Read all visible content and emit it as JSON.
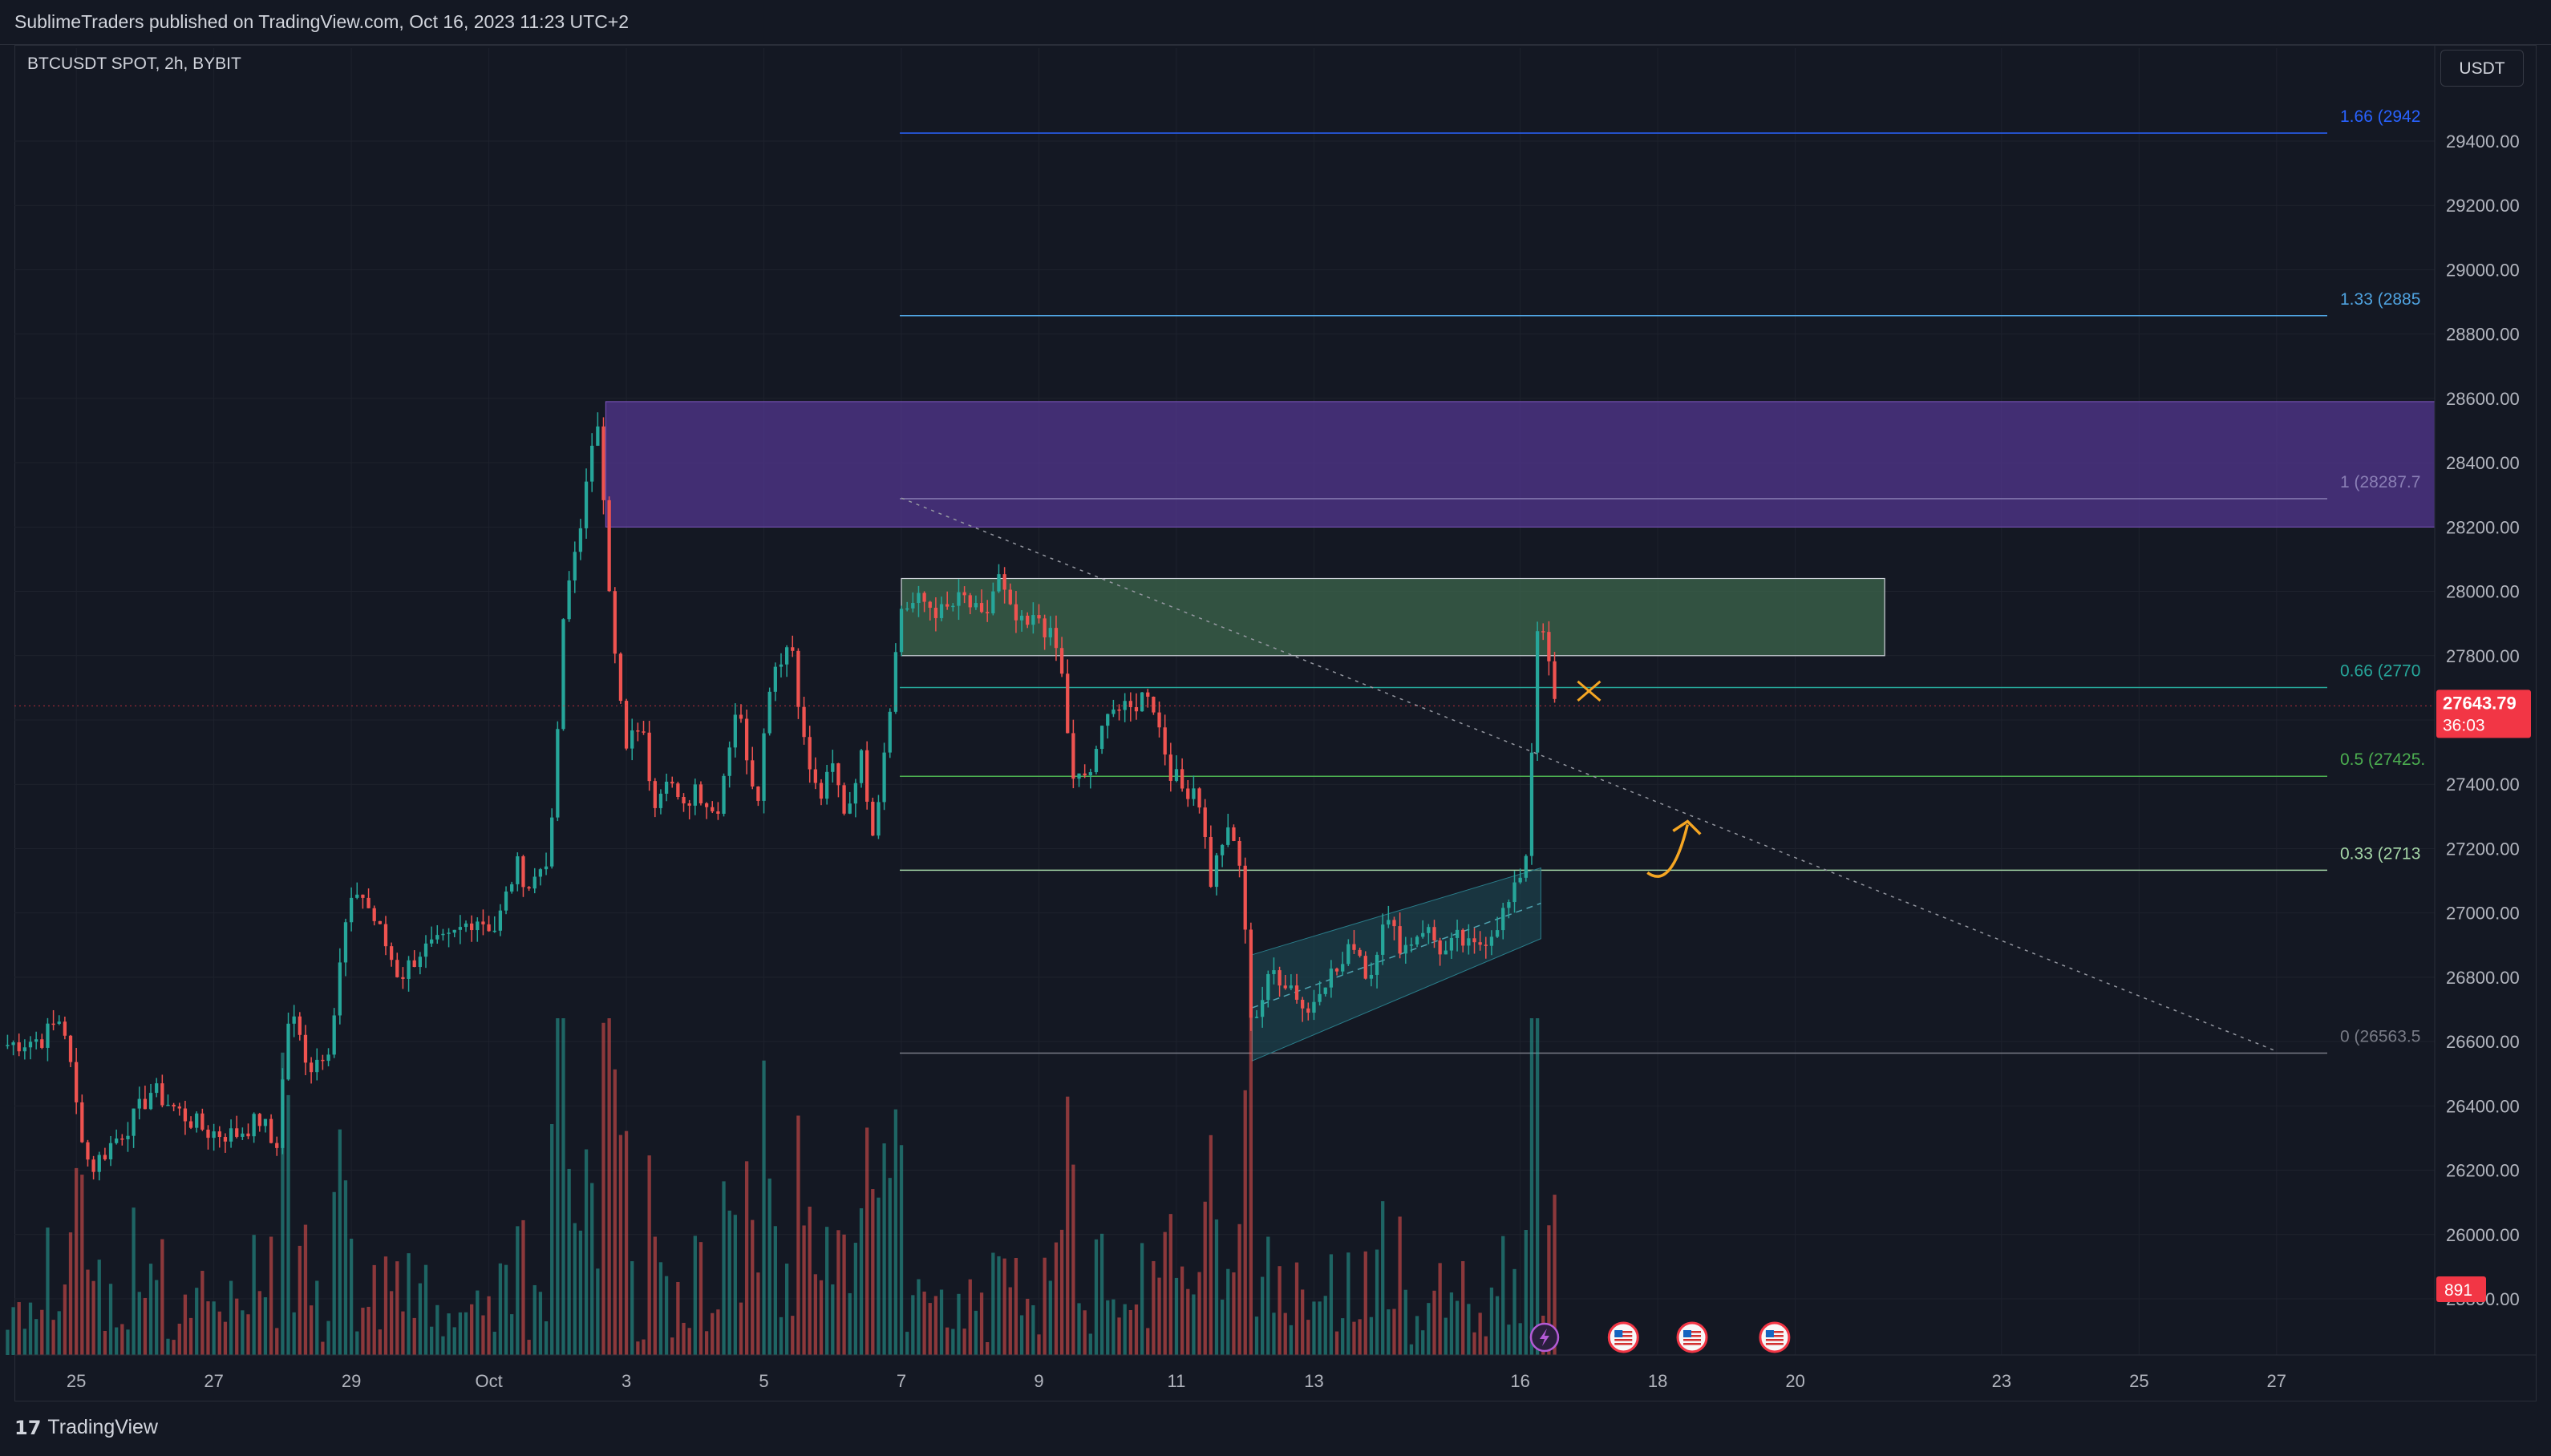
{
  "header": {
    "publisher": "SublimeTraders published on TradingView.com, Oct 16, 2023 11:23 UTC+2"
  },
  "chart_header": {
    "symbol": "BTCUSDT SPOT, 2h, BYBIT",
    "currency": "USDT"
  },
  "footer": {
    "logo_mark": "17",
    "logo_text": "TradingView"
  },
  "colors": {
    "background": "#141823",
    "grid": "#1e222d",
    "up": "#26a69a",
    "down": "#ef5350",
    "zone_purple": "#5b3a9e",
    "zone_green": "#3f6b4f",
    "fib_1_66": "#2962ff",
    "fib_1_33": "#4fa3e0",
    "fib_1": "#8a7fb5",
    "fib_0_66": "#26a69a",
    "fib_0_5": "#4caf50",
    "fib_0_33": "#a5d6a7",
    "fib_0": "#787b86",
    "annotation": "#f5a623",
    "price_badge": "#f23645"
  },
  "chart_data": {
    "type": "candlestick",
    "symbol": "BTCUSDT SPOT",
    "interval": "2h",
    "exchange": "BYBIT",
    "y_range": [
      25800,
      29600
    ],
    "y_ticks": [
      "29400.00",
      "29200.00",
      "29000.00",
      "28800.00",
      "28600.00",
      "28400.00",
      "28200.00",
      "28000.00",
      "27800.00",
      "27600.00",
      "27400.00",
      "27200.00",
      "27000.00",
      "26800.00",
      "26600.00",
      "26400.00",
      "26200.00",
      "26000.00",
      "25800.00"
    ],
    "y_tick_values": [
      29400,
      29200,
      29000,
      28800,
      28600,
      28400,
      28200,
      28000,
      27800,
      27600,
      27400,
      27200,
      27000,
      26800,
      26600,
      26400,
      26200,
      26000,
      25800
    ],
    "x_ticks": [
      {
        "label": "25",
        "day": 25
      },
      {
        "label": "27",
        "day": 27
      },
      {
        "label": "29",
        "day": 29
      },
      {
        "label": "Oct",
        "day": 31
      },
      {
        "label": "3",
        "day": 33
      },
      {
        "label": "5",
        "day": 35
      },
      {
        "label": "7",
        "day": 37
      },
      {
        "label": "9",
        "day": 39
      },
      {
        "label": "11",
        "day": 41
      },
      {
        "label": "13",
        "day": 43
      },
      {
        "label": "16",
        "day": 46
      },
      {
        "label": "18",
        "day": 48
      },
      {
        "label": "20",
        "day": 50
      },
      {
        "label": "23",
        "day": 53
      },
      {
        "label": "25",
        "day": 55
      },
      {
        "label": "27",
        "day": 57
      }
    ],
    "x_range_days": [
      24.1,
      59.3
    ],
    "price_path": [
      [
        24.0,
        26590
      ],
      [
        24.5,
        26610
      ],
      [
        24.8,
        26680
      ],
      [
        25.0,
        26400
      ],
      [
        25.2,
        26200
      ],
      [
        25.5,
        26280
      ],
      [
        25.8,
        26350
      ],
      [
        26.1,
        26450
      ],
      [
        26.5,
        26380
      ],
      [
        26.9,
        26320
      ],
      [
        27.3,
        26310
      ],
      [
        27.7,
        26360
      ],
      [
        27.9,
        26250
      ],
      [
        28.1,
        26700
      ],
      [
        28.4,
        26520
      ],
      [
        28.7,
        26600
      ],
      [
        28.9,
        26950
      ],
      [
        29.1,
        27080
      ],
      [
        29.4,
        26950
      ],
      [
        29.7,
        26800
      ],
      [
        30.0,
        26880
      ],
      [
        30.4,
        26910
      ],
      [
        30.8,
        26990
      ],
      [
        31.1,
        26950
      ],
      [
        31.4,
        27150
      ],
      [
        31.6,
        27080
      ],
      [
        31.9,
        27200
      ],
      [
        32.1,
        27950
      ],
      [
        32.4,
        28300
      ],
      [
        32.6,
        28550
      ],
      [
        32.8,
        27850
      ],
      [
        33.0,
        27500
      ],
      [
        33.2,
        27600
      ],
      [
        33.4,
        27350
      ],
      [
        33.6,
        27450
      ],
      [
        33.8,
        27300
      ],
      [
        34.0,
        27400
      ],
      [
        34.3,
        27300
      ],
      [
        34.6,
        27650
      ],
      [
        34.9,
        27350
      ],
      [
        35.1,
        27750
      ],
      [
        35.4,
        27850
      ],
      [
        35.6,
        27500
      ],
      [
        35.8,
        27350
      ],
      [
        36.0,
        27450
      ],
      [
        36.2,
        27300
      ],
      [
        36.4,
        27500
      ],
      [
        36.6,
        27250
      ],
      [
        36.8,
        27600
      ],
      [
        37.0,
        27950
      ],
      [
        37.3,
        27970
      ],
      [
        37.6,
        27930
      ],
      [
        37.9,
        27980
      ],
      [
        38.2,
        27900
      ],
      [
        38.4,
        28050
      ],
      [
        38.6,
        27920
      ],
      [
        38.8,
        27880
      ],
      [
        39.0,
        27920
      ],
      [
        39.3,
        27800
      ],
      [
        39.5,
        27400
      ],
      [
        39.8,
        27450
      ],
      [
        40.0,
        27650
      ],
      [
        40.3,
        27620
      ],
      [
        40.6,
        27700
      ],
      [
        40.9,
        27450
      ],
      [
        41.1,
        27380
      ],
      [
        41.3,
        27400
      ],
      [
        41.5,
        27100
      ],
      [
        41.7,
        27250
      ],
      [
        41.9,
        27200
      ],
      [
        42.1,
        26650
      ],
      [
        42.4,
        26820
      ],
      [
        42.7,
        26770
      ],
      [
        42.9,
        26680
      ],
      [
        43.1,
        26790
      ],
      [
        43.4,
        26830
      ],
      [
        43.6,
        26920
      ],
      [
        43.8,
        26780
      ],
      [
        44.0,
        26990
      ],
      [
        44.3,
        26890
      ],
      [
        44.6,
        26960
      ],
      [
        44.9,
        26870
      ],
      [
        45.1,
        26920
      ],
      [
        45.3,
        26880
      ],
      [
        45.6,
        26950
      ],
      [
        45.9,
        27050
      ],
      [
        46.1,
        27200
      ],
      [
        46.25,
        27900
      ],
      [
        46.4,
        27800
      ],
      [
        46.5,
        27645
      ]
    ],
    "fib_levels": [
      {
        "ratio": "1.66",
        "label": "1.66 (2942",
        "price": 29425
      },
      {
        "ratio": "1.33",
        "label": "1.33 (2885",
        "price": 28857
      },
      {
        "ratio": "1",
        "label": "1 (28287.7",
        "price": 28288
      },
      {
        "ratio": "0.66",
        "label": "0.66 (2770",
        "price": 27701
      },
      {
        "ratio": "0.5",
        "label": "0.5 (27425.",
        "price": 27425
      },
      {
        "ratio": "0.33",
        "label": "0.33 (2713",
        "price": 27133
      },
      {
        "ratio": "0",
        "label": "0 (26563.5",
        "price": 26564
      }
    ],
    "fib_span_days": [
      37.0,
      57.0
    ],
    "zones": [
      {
        "name": "supply-zone-purple",
        "day_start": 32.7,
        "day_end": 59.3,
        "price_top": 28590,
        "price_bottom": 28200
      },
      {
        "name": "supply-zone-green",
        "day_start": 37.0,
        "day_end": 51.3,
        "price_top": 28040,
        "price_bottom": 27800
      }
    ],
    "channel": {
      "x1": 42.1,
      "y1_low": 26540,
      "y1_high": 26870,
      "x2": 46.3,
      "y2_low": 26920,
      "y2_high": 27140
    },
    "trendline": {
      "x1": 37.0,
      "y1": 28290,
      "x2": 57.0,
      "y2": 26570
    },
    "current_price": "27643.79",
    "current_countdown": "36:03",
    "current_price_value": 27643.79,
    "volume_label": "891",
    "annotation_marker_day": 47.0,
    "annotation_marker_price": 27690,
    "annotation_arrow_day": 48.2,
    "annotation_arrow_price": 27200,
    "event_icons_days": [
      46.4,
      47.5,
      48.5,
      49.7
    ]
  }
}
